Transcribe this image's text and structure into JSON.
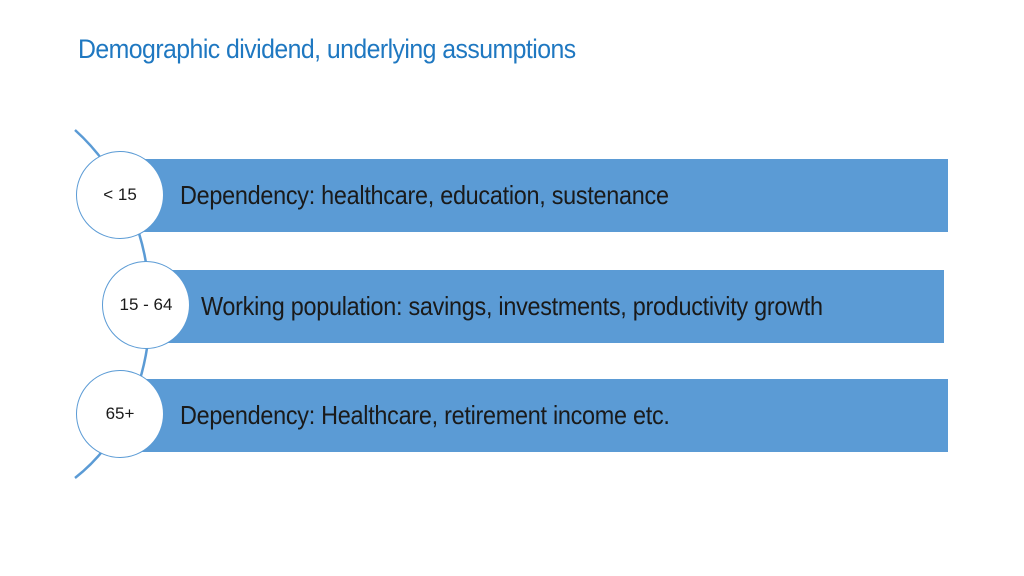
{
  "title": "Demographic dividend, underlying assumptions",
  "colors": {
    "title": "#1f78c1",
    "band": "#5b9bd5",
    "circle_border": "#5b9bd5"
  },
  "groups": [
    {
      "age_label": "< 15",
      "description": "Dependency: healthcare, education, sustenance"
    },
    {
      "age_label": "15 - 64",
      "description": "Working population: savings, investments, productivity growth"
    },
    {
      "age_label": "65+",
      "description": "Dependency: Healthcare, retirement income etc."
    }
  ]
}
